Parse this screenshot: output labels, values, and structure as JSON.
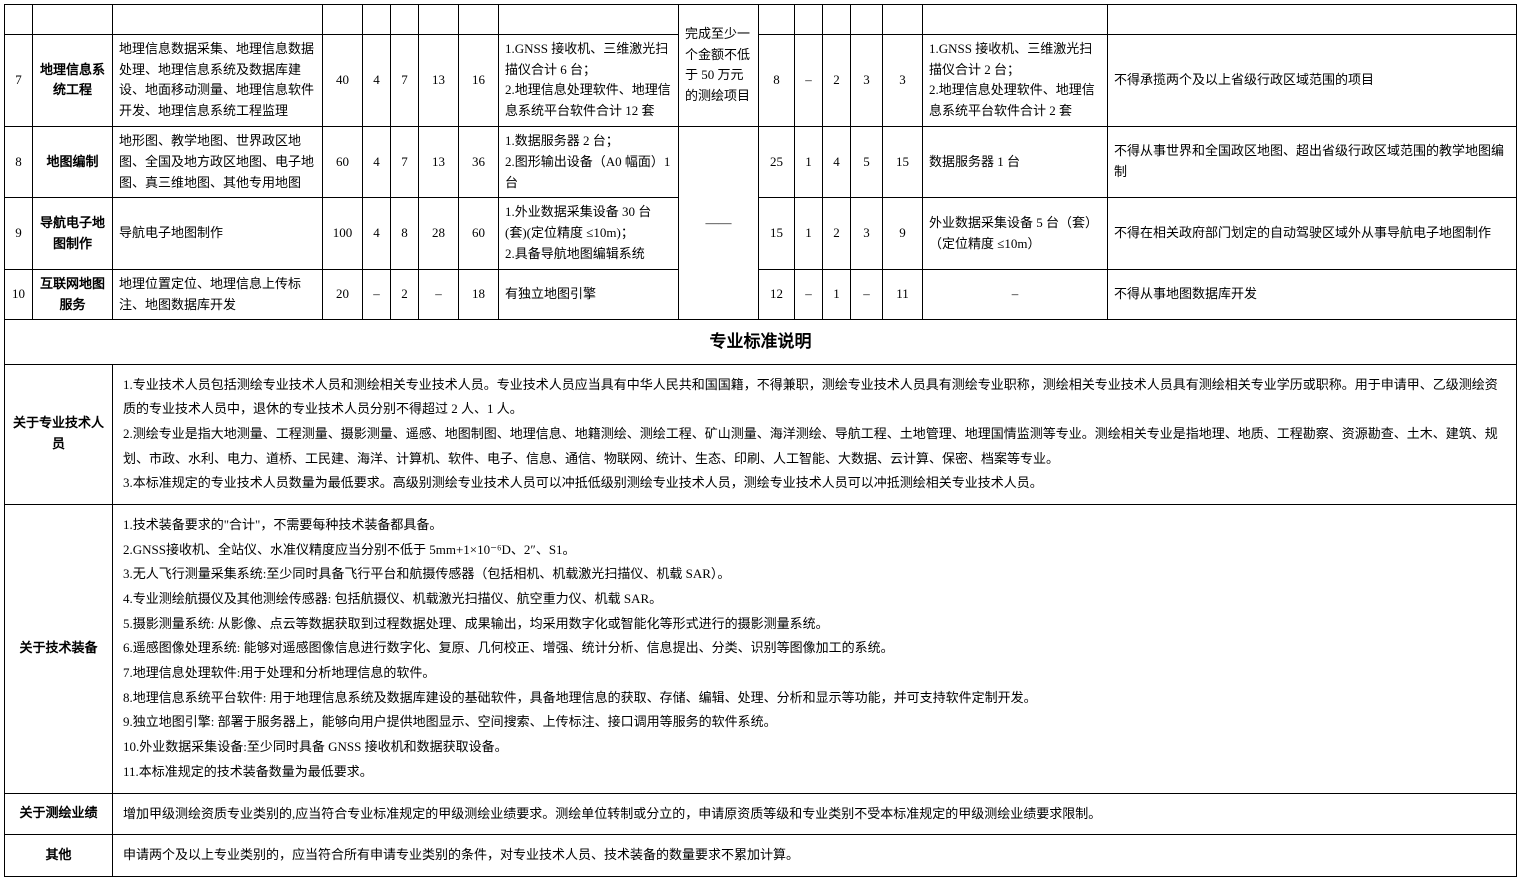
{
  "rows": [
    {
      "idx": "7",
      "name": "地理信息系统工程",
      "scope": "地理信息数据采集、地理信息数据处理、地理信息系统及数据库建设、地面移动测量、地理信息软件开发、地理信息系统工程监理",
      "a1": "40",
      "a2": "4",
      "a3": "7",
      "a4": "13",
      "a5": "16",
      "equip_a": "1.GNSS 接收机、三维激光扫描仪合计 6 台；\n2.地理信息处理软件、地理信息系统平台软件合计 12 套",
      "perf": "完成至少一个金额不低于 50 万元的测绘项目",
      "b1": "8",
      "b2": "–",
      "b3": "2",
      "b4": "3",
      "b5": "3",
      "equip_b": "1.GNSS 接收机、三维激光扫描仪合计 2 台；\n2.地理信息处理软件、地理信息系统平台软件合计 2 套",
      "limit": "不得承揽两个及以上省级行政区域范围的项目"
    },
    {
      "idx": "8",
      "name": "地图编制",
      "scope": "地形图、教学地图、世界政区地图、全国及地方政区地图、电子地图、真三维地图、其他专用地图",
      "a1": "60",
      "a2": "4",
      "a3": "7",
      "a4": "13",
      "a5": "36",
      "equip_a": "1.数据服务器 2 台；\n2.图形输出设备（A0 幅面）1 台",
      "perf": "",
      "b1": "25",
      "b2": "1",
      "b3": "4",
      "b4": "5",
      "b5": "15",
      "equip_b": "数据服务器 1 台",
      "limit": "不得从事世界和全国政区地图、超出省级行政区域范围的教学地图编制"
    },
    {
      "idx": "9",
      "name": "导航电子地图制作",
      "scope": "导航电子地图制作",
      "a1": "100",
      "a2": "4",
      "a3": "8",
      "a4": "28",
      "a5": "60",
      "equip_a": "1.外业数据采集设备 30 台(套)(定位精度 ≤10m)；\n2.具备导航地图编辑系统",
      "perf": "——",
      "b1": "15",
      "b2": "1",
      "b3": "2",
      "b4": "3",
      "b5": "9",
      "equip_b": "外业数据采集设备 5 台（套）（定位精度 ≤10m）",
      "limit": "不得在相关政府部门划定的自动驾驶区域外从事导航电子地图制作"
    },
    {
      "idx": "10",
      "name": "互联网地图服务",
      "scope": "地理位置定位、地理信息上传标注、地图数据库开发",
      "a1": "20",
      "a2": "–",
      "a3": "2",
      "a4": "–",
      "a5": "18",
      "equip_a": "有独立地图引擎",
      "perf": "",
      "b1": "12",
      "b2": "–",
      "b3": "1",
      "b4": "–",
      "b5": "11",
      "equip_b": "–",
      "limit": "不得从事地图数据库开发"
    }
  ],
  "section_title": "专业标准说明",
  "notes": [
    {
      "label": "关于专业技术人员",
      "text": "1.专业技术人员包括测绘专业技术人员和测绘相关专业技术人员。专业技术人员应当具有中华人民共和国国籍，不得兼职，测绘专业技术人员具有测绘专业职称，测绘相关专业技术人员具有测绘相关专业学历或职称。用于申请甲、乙级测绘资质的专业技术人员中，退休的专业技术人员分别不得超过 2 人、1 人。\n2.测绘专业是指大地测量、工程测量、摄影测量、遥感、地图制图、地理信息、地籍测绘、测绘工程、矿山测量、海洋测绘、导航工程、土地管理、地理国情监测等专业。测绘相关专业是指地理、地质、工程勘察、资源勘查、土木、建筑、规划、市政、水利、电力、道桥、工民建、海洋、计算机、软件、电子、信息、通信、物联网、统计、生态、印刷、人工智能、大数据、云计算、保密、档案等专业。\n3.本标准规定的专业技术人员数量为最低要求。高级别测绘专业技术人员可以冲抵低级别测绘专业技术人员，测绘专业技术人员可以冲抵测绘相关专业技术人员。"
    },
    {
      "label": "关于技术装备",
      "text": "1.技术装备要求的\"合计\"，不需要每种技术装备都具备。\n2.GNSS接收机、全站仪、水准仪精度应当分别不低于 5mm+1×10⁻⁶D、2″、S1。\n3.无人飞行测量采集系统:至少同时具备飞行平台和航摄传感器（包括相机、机载激光扫描仪、机载 SAR）。\n4.专业测绘航摄仪及其他测绘传感器: 包括航摄仪、机载激光扫描仪、航空重力仪、机载 SAR。\n5.摄影测量系统: 从影像、点云等数据获取到过程数据处理、成果输出，均采用数字化或智能化等形式进行的摄影测量系统。\n6.遥感图像处理系统: 能够对遥感图像信息进行数字化、复原、几何校正、增强、统计分析、信息提出、分类、识别等图像加工的系统。\n7.地理信息处理软件:用于处理和分析地理信息的软件。\n8.地理信息系统平台软件: 用于地理信息系统及数据库建设的基础软件，具备地理信息的获取、存储、编辑、处理、分析和显示等功能，并可支持软件定制开发。\n9.独立地图引擎: 部署于服务器上，能够向用户提供地图显示、空间搜索、上传标注、接口调用等服务的软件系统。\n10.外业数据采集设备:至少同时具备 GNSS 接收机和数据获取设备。\n11.本标准规定的技术装备数量为最低要求。"
    },
    {
      "label": "关于测绘业绩",
      "text": "增加甲级测绘资质专业类别的,应当符合专业标准规定的甲级测绘业绩要求。测绘单位转制或分立的，申请原资质等级和专业类别不受本标准规定的甲级测绘业绩要求限制。"
    },
    {
      "label": "其他",
      "text": "申请两个及以上专业类别的，应当符合所有申请专业类别的条件，对专业技术人员、技术装备的数量要求不累加计算。"
    }
  ]
}
